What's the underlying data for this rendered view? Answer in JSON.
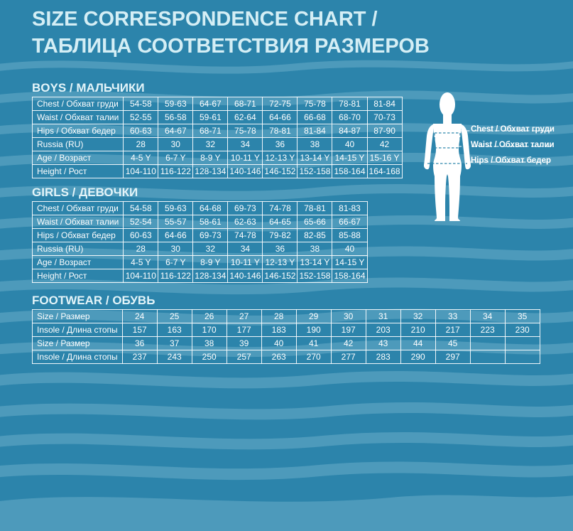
{
  "title": {
    "line1": "SIZE CORRESPONDENCE CHART /",
    "line2": "ТАБЛИЦА СООТВЕТСТВИЯ РАЗМЕРОВ"
  },
  "colors": {
    "background": "#2c84ab",
    "wave_stripe": "#4d9abb",
    "title_text": "#d4eef5",
    "table_text": "#ffffff",
    "table_border": "#ffffff",
    "figure_silhouette": "#ffffff"
  },
  "boys": {
    "heading": "BOYS / МАЛЬЧИКИ",
    "rows": [
      {
        "label": "Chest / Обхват груди",
        "values": [
          "54-58",
          "59-63",
          "64-67",
          "68-71",
          "72-75",
          "75-78",
          "78-81",
          "81-84"
        ]
      },
      {
        "label": "Waist / Обхват талии",
        "values": [
          "52-55",
          "56-58",
          "59-61",
          "62-64",
          "64-66",
          "66-68",
          "68-70",
          "70-73"
        ]
      },
      {
        "label": "Hips / Обхват бедер",
        "values": [
          "60-63",
          "64-67",
          "68-71",
          "75-78",
          "78-81",
          "81-84",
          "84-87",
          "87-90"
        ]
      },
      {
        "label": "Russia (RU)",
        "values": [
          "28",
          "30",
          "32",
          "34",
          "36",
          "38",
          "40",
          "42"
        ]
      },
      {
        "label": "Age / Возраст",
        "values": [
          "4-5 Y",
          "6-7 Y",
          "8-9 Y",
          "10-11 Y",
          "12-13 Y",
          "13-14 Y",
          "14-15 Y",
          "15-16 Y"
        ]
      },
      {
        "label": "Height / Рост",
        "values": [
          "104-110",
          "116-122",
          "128-134",
          "140-146",
          "146-152",
          "152-158",
          "158-164",
          "164-168"
        ]
      }
    ]
  },
  "girls": {
    "heading": "GIRLS / ДЕВОЧКИ",
    "rows": [
      {
        "label": "Chest / Обхват груди",
        "values": [
          "54-58",
          "59-63",
          "64-68",
          "69-73",
          "74-78",
          "78-81",
          "81-83"
        ]
      },
      {
        "label": "Waist / Обхват талии",
        "values": [
          "52-54",
          "55-57",
          "58-61",
          "62-63",
          "64-65",
          "65-66",
          "66-67"
        ]
      },
      {
        "label": "Hips / Обхват бедер",
        "values": [
          "60-63",
          "64-66",
          "69-73",
          "74-78",
          "79-82",
          "82-85",
          "85-88"
        ]
      },
      {
        "label": "Russia (RU)",
        "values": [
          "28",
          "30",
          "32",
          "34",
          "36",
          "38",
          "40"
        ]
      },
      {
        "label": "Age / Возраст",
        "values": [
          "4-5 Y",
          "6-7 Y",
          "8-9 Y",
          "10-11 Y",
          "12-13 Y",
          "13-14 Y",
          "14-15 Y"
        ]
      },
      {
        "label": "Height / Рост",
        "values": [
          "104-110",
          "116-122",
          "128-134",
          "140-146",
          "146-152",
          "152-158",
          "158-164"
        ]
      }
    ]
  },
  "footwear": {
    "heading": "FOOTWEAR / ОБУВЬ",
    "rows": [
      {
        "label": "Size / Размер",
        "values": [
          "24",
          "25",
          "26",
          "27",
          "28",
          "29",
          "30",
          "31",
          "32",
          "33",
          "34",
          "35"
        ]
      },
      {
        "label": "Insole / Длина стопы",
        "values": [
          "157",
          "163",
          "170",
          "177",
          "183",
          "190",
          "197",
          "203",
          "210",
          "217",
          "223",
          "230"
        ]
      },
      {
        "label": "Size / Размер",
        "values": [
          "36",
          "37",
          "38",
          "39",
          "40",
          "41",
          "42",
          "43",
          "44",
          "45",
          "",
          ""
        ]
      },
      {
        "label": "Insole / Длина стопы",
        "values": [
          "237",
          "243",
          "250",
          "257",
          "263",
          "270",
          "277",
          "283",
          "290",
          "297",
          "",
          ""
        ]
      }
    ]
  },
  "figure": {
    "labels": {
      "chest": "Chest / Обхват груди",
      "waist": "Waist / Обхват талии",
      "hips": "Hips / Обхват бедер"
    }
  }
}
